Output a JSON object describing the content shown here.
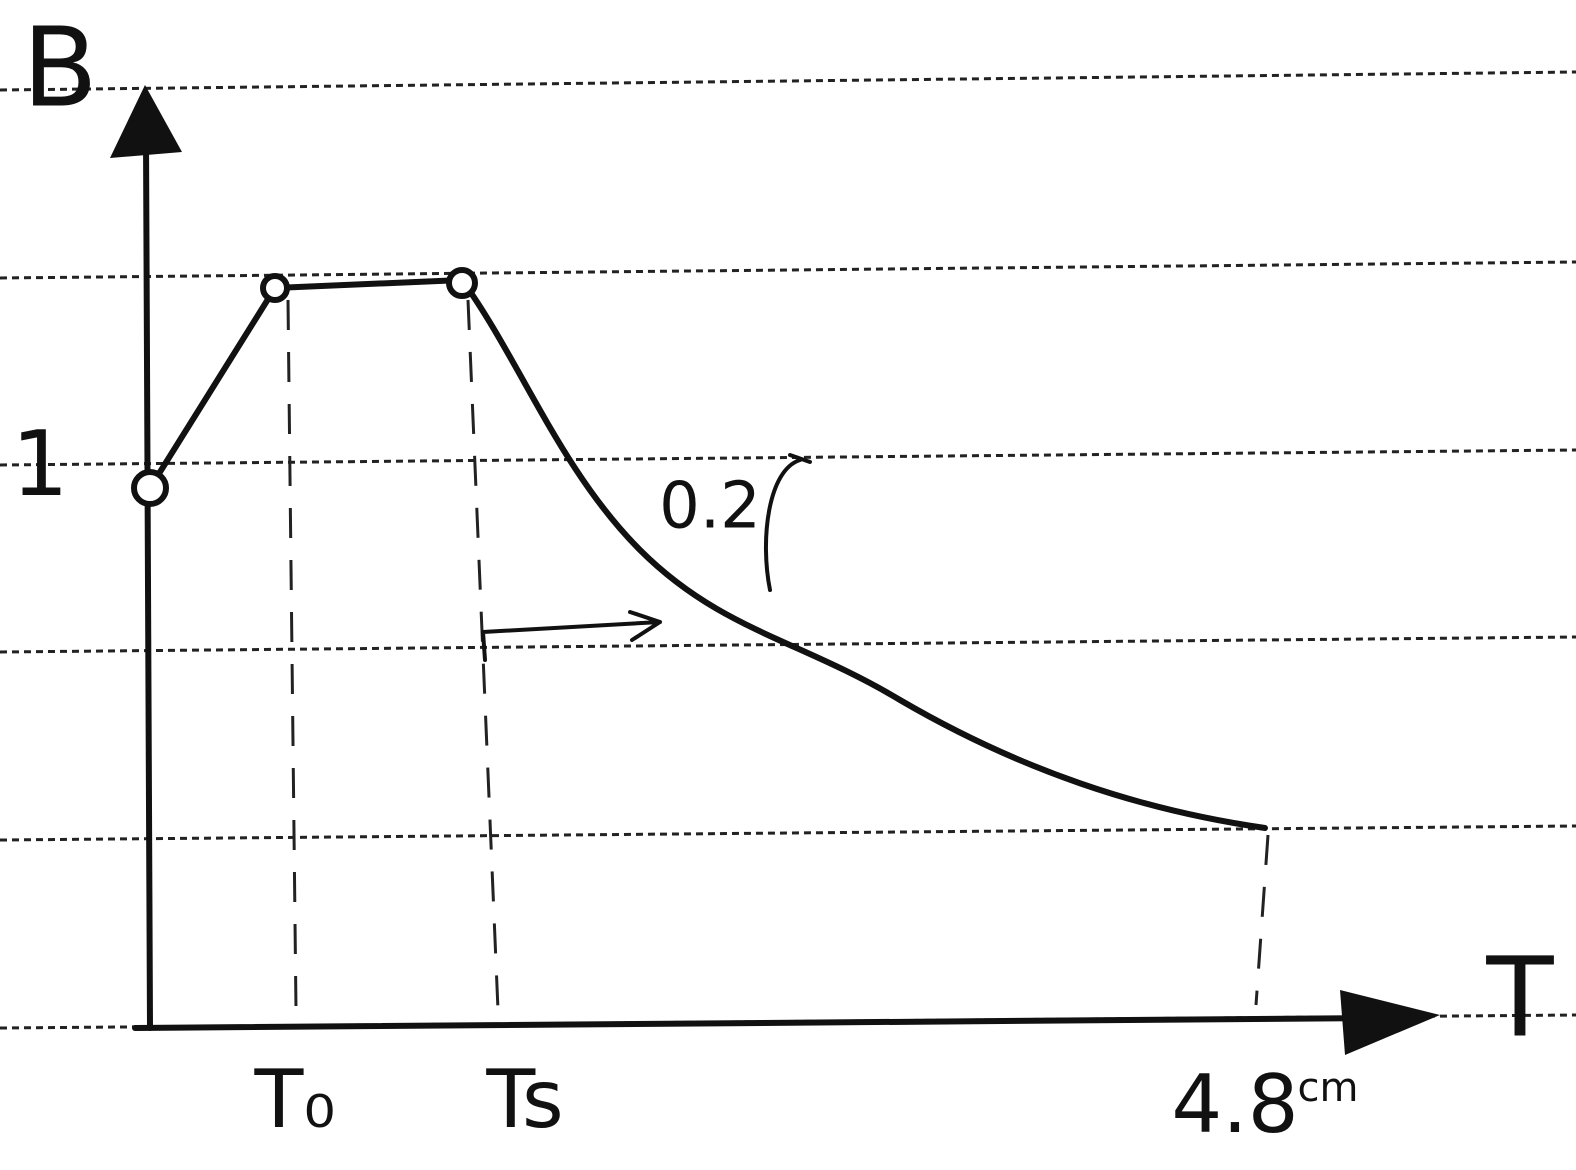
{
  "axes": {
    "y_label": "B",
    "x_label": "T",
    "y_tick": "1"
  },
  "x_marks": [
    "T₀",
    "Ts",
    "4.8"
  ],
  "unit": "cm",
  "annotations": [
    "0.2"
  ]
}
